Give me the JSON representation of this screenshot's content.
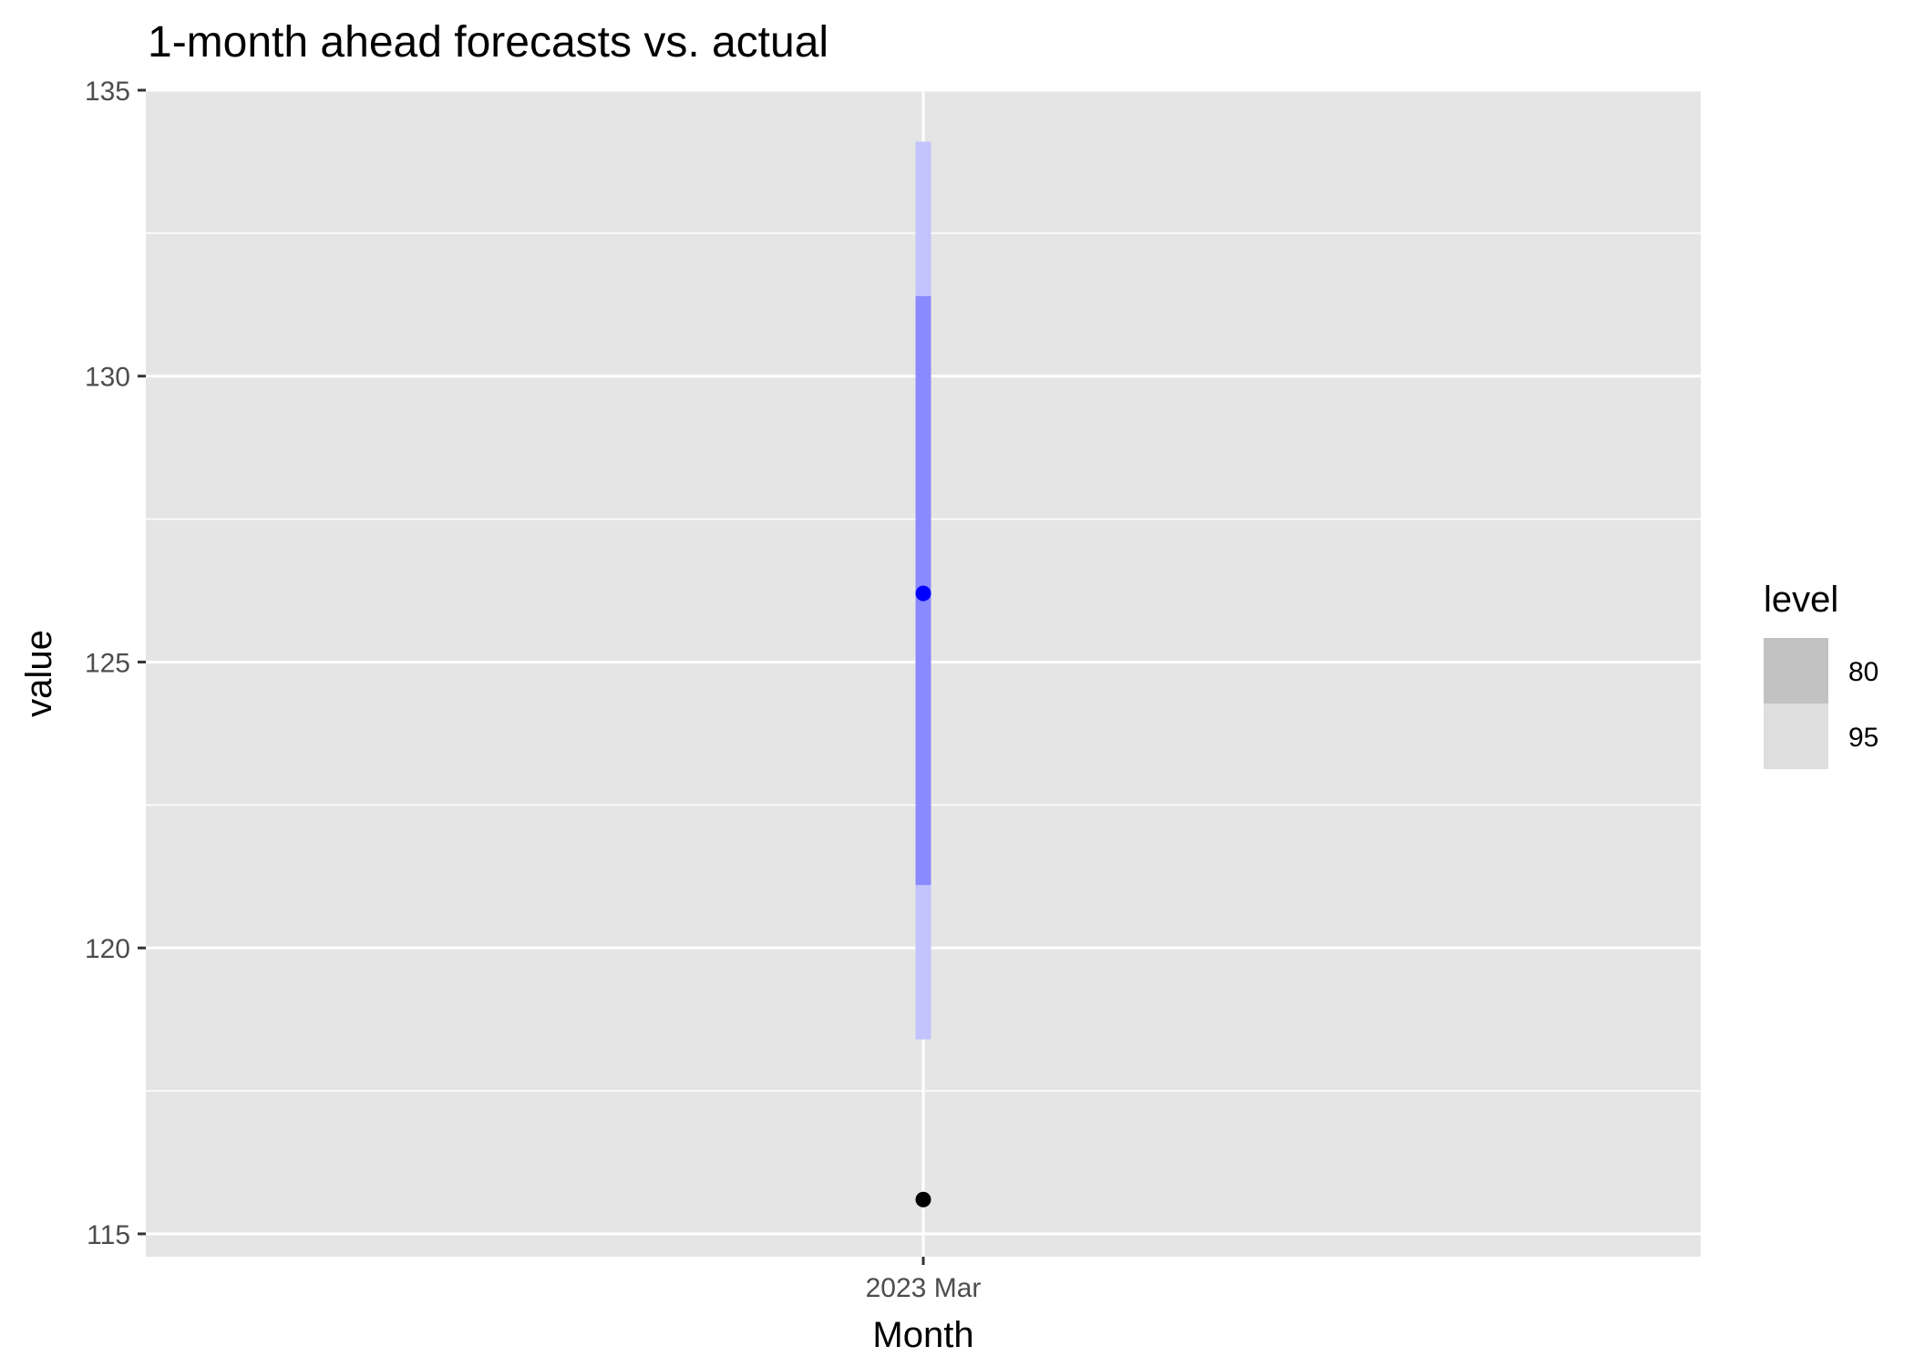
{
  "chart_data": {
    "type": "interval",
    "title": "1-month ahead forecasts vs. actual",
    "xlabel": "Month",
    "ylabel": "value",
    "categories": [
      "2023 Mar"
    ],
    "ylim": [
      114.6,
      135
    ],
    "yticks": [
      115,
      120,
      125,
      130,
      135
    ],
    "forecast": {
      "x": "2023 Mar",
      "mean": 126.2,
      "color": "#0000ff"
    },
    "actual": {
      "x": "2023 Mar",
      "value": 115.6,
      "color": "#000000"
    },
    "intervals": [
      {
        "level": "95",
        "lower": 118.4,
        "upper": 134.1,
        "color": "#c3c3ff"
      },
      {
        "level": "80",
        "lower": 121.1,
        "upper": 131.4,
        "color": "#8a8aff"
      }
    ],
    "legend": {
      "title": "level",
      "position": "right",
      "items": [
        {
          "label": "80",
          "color": "#c2c2c2"
        },
        {
          "label": "95",
          "color": "#dedede"
        }
      ]
    },
    "panel_background": "#e5e5e5",
    "grid": true,
    "grid_color": "#ffffff"
  }
}
